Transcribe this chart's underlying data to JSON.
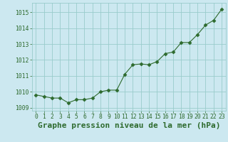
{
  "x": [
    0,
    1,
    2,
    3,
    4,
    5,
    6,
    7,
    8,
    9,
    10,
    11,
    12,
    13,
    14,
    15,
    16,
    17,
    18,
    19,
    20,
    21,
    22,
    23
  ],
  "y": [
    1009.8,
    1009.7,
    1009.6,
    1009.6,
    1009.3,
    1009.5,
    1009.5,
    1009.6,
    1010.0,
    1010.1,
    1010.1,
    1011.1,
    1011.7,
    1011.75,
    1011.7,
    1011.9,
    1012.4,
    1012.5,
    1013.1,
    1013.1,
    1013.6,
    1014.2,
    1014.5,
    1015.2
  ],
  "line_color": "#2d6a2d",
  "marker": "D",
  "marker_size": 2.5,
  "bg_color": "#cce8f0",
  "grid_color": "#99cccc",
  "xlabel": "Graphe pression niveau de la mer (hPa)",
  "ylim": [
    1008.8,
    1015.6
  ],
  "yticks": [
    1009,
    1010,
    1011,
    1012,
    1013,
    1014,
    1015
  ],
  "xticks": [
    0,
    1,
    2,
    3,
    4,
    5,
    6,
    7,
    8,
    9,
    10,
    11,
    12,
    13,
    14,
    15,
    16,
    17,
    18,
    19,
    20,
    21,
    22,
    23
  ],
  "tick_fontsize": 5.8,
  "xlabel_fontsize": 8.0,
  "tick_color": "#2d6a2d",
  "xlabel_color": "#2d6a2d"
}
